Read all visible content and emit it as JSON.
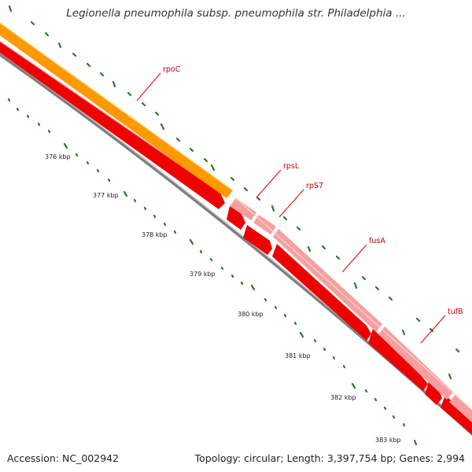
{
  "header": {
    "title": "Legionella pneumophila subsp. pneumophila str. Philadelphia ..."
  },
  "footer": {
    "accession": "Accession: NC_002942",
    "stats": "Topology: circular; Length: 3,397,754 bp; Genes: 2,994"
  },
  "colors": {
    "outer_strand_gene": "#f5a0a0",
    "rpoC_gene": "#ff9900",
    "cds": "#ee0000",
    "backbone": "#8a8a8a",
    "tick": "#2a7a2a",
    "label": "#cc0000"
  },
  "scale": {
    "ticks": [
      "376 kbp",
      "377 kbp",
      "378 kbp",
      "379 kbp",
      "380 kbp",
      "381 kbp",
      "382 kbp",
      "383 kbp"
    ]
  },
  "genes": [
    "rpoC",
    "rpsL",
    "rpS7",
    "fusA",
    "tufB"
  ]
}
